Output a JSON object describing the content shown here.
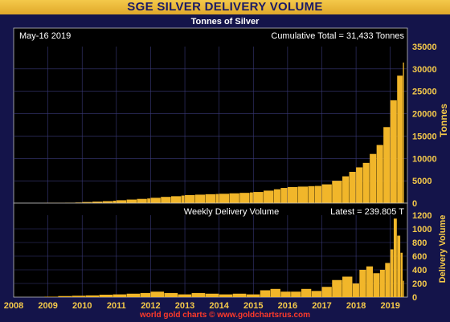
{
  "title": "SGE SILVER DELIVERY VOLUME",
  "footer": "world gold charts © www.goldchartsrus.com",
  "chart_data": [
    {
      "type": "bar",
      "title": "Tonnes of Silver",
      "date_label": "May-16  2019",
      "annotation": "Cumulative Total = 31,433 Tonnes",
      "ylabel": "Tonnes",
      "ylim": [
        0,
        35000
      ],
      "yticks": [
        "0",
        "5000",
        "10000",
        "15000",
        "20000",
        "25000",
        "30000",
        "35000"
      ],
      "xlim": [
        2008.0,
        2019.5
      ],
      "x": [
        2008.9,
        2009.2,
        2009.5,
        2009.8,
        2010.0,
        2010.3,
        2010.6,
        2010.9,
        2011.0,
        2011.3,
        2011.6,
        2011.9,
        2012.0,
        2012.3,
        2012.6,
        2012.9,
        2013.0,
        2013.3,
        2013.6,
        2013.9,
        2014.0,
        2014.3,
        2014.6,
        2014.9,
        2015.0,
        2015.3,
        2015.6,
        2015.8,
        2016.0,
        2016.3,
        2016.6,
        2016.8,
        2017.0,
        2017.3,
        2017.6,
        2017.8,
        2018.0,
        2018.2,
        2018.4,
        2018.6,
        2018.8,
        2019.0,
        2019.2,
        2019.37
      ],
      "values": [
        0,
        50,
        100,
        150,
        250,
        350,
        450,
        550,
        650,
        800,
        950,
        1050,
        1200,
        1400,
        1550,
        1700,
        1800,
        1900,
        2000,
        2050,
        2100,
        2200,
        2300,
        2400,
        2500,
        2800,
        3100,
        3400,
        3600,
        3700,
        3800,
        3850,
        4200,
        5000,
        6000,
        7000,
        8000,
        9000,
        11000,
        13000,
        17000,
        23000,
        28500,
        31433
      ]
    },
    {
      "type": "bar",
      "title": "Weekly Delivery Volume",
      "annotation": "Latest = 239.805 T",
      "ylabel": "Delivery Volume",
      "ylim": [
        0,
        1200
      ],
      "yticks": [
        "0",
        "200",
        "400",
        "600",
        "800",
        "1000",
        "1200"
      ],
      "xlim": [
        2008.0,
        2019.5
      ],
      "xticks": [
        "2008",
        "2009",
        "2010",
        "2011",
        "2012",
        "2013",
        "2014",
        "2015",
        "2016",
        "2017",
        "2018",
        "2019"
      ],
      "x": [
        2008.9,
        2009.3,
        2009.7,
        2010.1,
        2010.5,
        2010.9,
        2011.3,
        2011.7,
        2012.0,
        2012.4,
        2012.8,
        2013.2,
        2013.6,
        2014.0,
        2014.4,
        2014.8,
        2015.2,
        2015.5,
        2015.8,
        2016.1,
        2016.4,
        2016.7,
        2017.0,
        2017.3,
        2017.6,
        2017.9,
        2018.1,
        2018.3,
        2018.5,
        2018.7,
        2018.85,
        2019.0,
        2019.1,
        2019.2,
        2019.3,
        2019.37
      ],
      "values": [
        5,
        15,
        20,
        25,
        35,
        40,
        50,
        60,
        80,
        60,
        40,
        60,
        50,
        40,
        50,
        40,
        100,
        120,
        80,
        80,
        120,
        90,
        150,
        250,
        300,
        200,
        400,
        450,
        350,
        400,
        500,
        700,
        1150,
        900,
        650,
        239.805
      ]
    }
  ]
}
